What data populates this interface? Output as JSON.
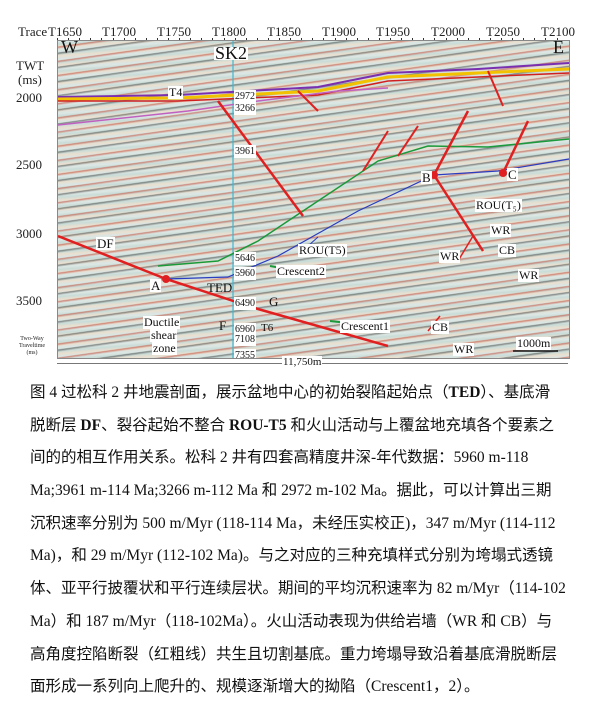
{
  "figure": {
    "trace_label": "Trace",
    "traces": [
      "T1650",
      "T1700",
      "T1750",
      "T1800",
      "T1850",
      "T1900",
      "T1950",
      "T2000",
      "T2050",
      "T2100"
    ],
    "twt_label": "TWT",
    "twt_unit": "(ms)",
    "twt_ticks": [
      "2000",
      "2500",
      "3000",
      "3500"
    ],
    "twt_footer": "Two-Way Traveltime (ms)",
    "west": "W",
    "east": "E",
    "well": "SK2",
    "depths": [
      "2972",
      "3266",
      "3961",
      "5646",
      "5960",
      "6490",
      "6960",
      "7108",
      "7355"
    ],
    "t6": "T6",
    "labels": {
      "t4": "T4",
      "df": "DF",
      "a": "A",
      "b": "B",
      "c": "C",
      "ted": "TED",
      "g": "G",
      "f": "F",
      "rou_t5": "ROU(T5)",
      "rou_t": "ROU(T₅)",
      "crescent1": "Crescent1",
      "crescent2": "Crescent2",
      "ductile": "Ductile",
      "shear": "shear",
      "zone": "zone",
      "wr": "WR",
      "cb": "CB"
    },
    "scale_bar": "1000m",
    "section_length": "11,750m",
    "colors": {
      "fault": "#e02020",
      "horizon_yellow": "#f2c200",
      "horizon_purple": "#7a2fb0",
      "green": "#1a9a3a",
      "blue": "#2a3cc0",
      "well": "#3fb6d0"
    }
  },
  "caption": [
    [
      {
        "t": "图 4  过松科 2 井地震剖面，展示盆地中心的初始裂陷起始点（"
      },
      {
        "t": "TED",
        "b": true
      },
      {
        "t": "）、基底滑"
      }
    ],
    [
      {
        "t": "脱断层 "
      },
      {
        "t": "DF",
        "b": true
      },
      {
        "t": "、裂谷起始不整合 "
      },
      {
        "t": "ROU-T5",
        "b": true
      },
      {
        "t": " 和火山活动与上覆盆地充填各个要素之"
      }
    ],
    [
      {
        "t": "间的的相互作用关系。松科 2 井有四套高精度井深-年代数据：5960 m-118"
      }
    ],
    [
      {
        "t": "Ma;3961 m-114 Ma;3266 m-112 Ma 和 2972 m-102 Ma。据此，可以计算出三期"
      }
    ],
    [
      {
        "t": "沉积速率分别为 500 m/Myr (118-114 Ma，未经压实校正)，347 m/Myr (114-112"
      }
    ],
    [
      {
        "t": "Ma)，和 29 m/Myr (112-102 Ma)。与之对应的三种充填样式分别为垮塌式透镜"
      }
    ],
    [
      {
        "t": "体、亚平行披覆状和平行连续层状。期间的平均沉积速率为 82 m/Myr（114-102"
      }
    ],
    [
      {
        "t": "Ma）和 187 m/Myr（118-102Ma）。火山活动表现为供给岩墙（WR 和 CB）与"
      }
    ],
    [
      {
        "t": "高角度控陷断裂（红粗线）共生且切割基底。重力垮塌导致沿着基底滑脱断层"
      }
    ],
    [
      {
        "t": "面形成一系列向上爬升的、规模逐渐增大的拗陷（Crescent1，2）。"
      }
    ]
  ]
}
